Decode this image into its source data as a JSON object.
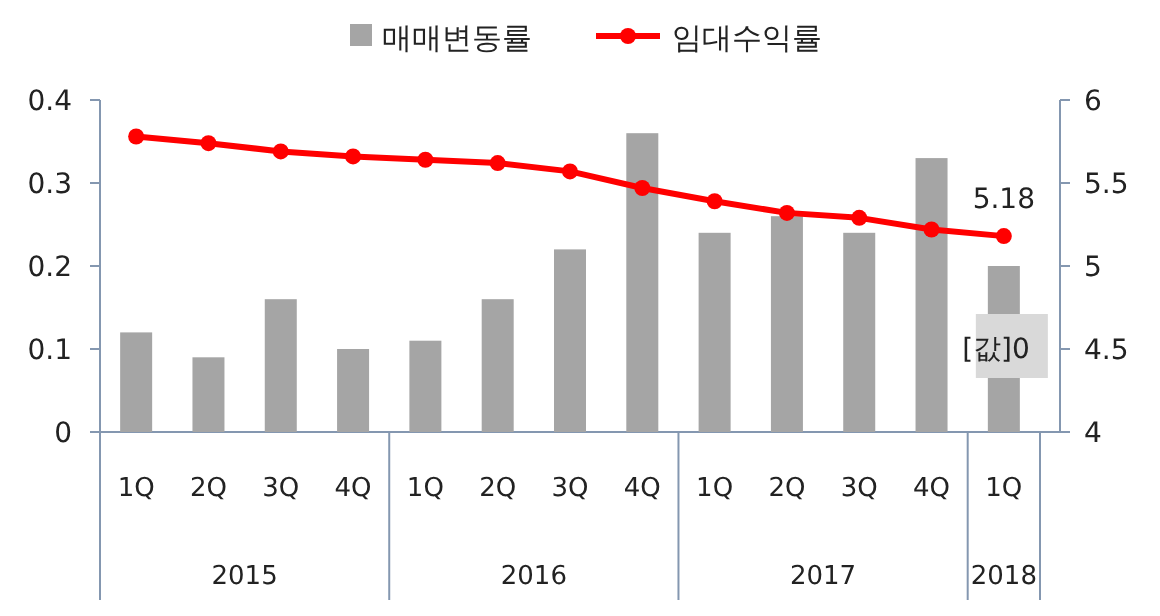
{
  "chart_data": {
    "type": "bar",
    "categories": [
      "1Q",
      "2Q",
      "3Q",
      "4Q",
      "1Q",
      "2Q",
      "3Q",
      "4Q",
      "1Q",
      "2Q",
      "3Q",
      "4Q",
      "1Q"
    ],
    "series": [
      {
        "name": "매매변동률",
        "color": "#a5a5a5",
        "values": [
          0.12,
          0.09,
          0.16,
          0.1,
          0.11,
          0.16,
          0.22,
          0.36,
          0.24,
          0.26,
          0.24,
          0.33,
          0.2
        ]
      },
      {
        "name": "임대수익률",
        "type": "line",
        "axis": "y2",
        "color": "#ff0000",
        "marker": "circle",
        "values": [
          5.78,
          5.74,
          5.69,
          5.66,
          5.64,
          5.62,
          5.57,
          5.47,
          5.39,
          5.32,
          5.29,
          5.22,
          5.18
        ],
        "value_labels": [
          null,
          null,
          null,
          null,
          null,
          null,
          null,
          null,
          null,
          null,
          null,
          null,
          "5.18"
        ]
      }
    ],
    "ylim": [
      0,
      0.4
    ],
    "yticks": [
      0,
      0.1,
      0.2,
      0.3,
      0.4
    ],
    "y2lim": [
      4,
      6
    ],
    "y2ticks": [
      4,
      4.5,
      5,
      5.5,
      6
    ],
    "legend": "top",
    "grid": false,
    "annotations": [
      "2015",
      "2016",
      "2017",
      "2018",
      "[값]0"
    ]
  }
}
